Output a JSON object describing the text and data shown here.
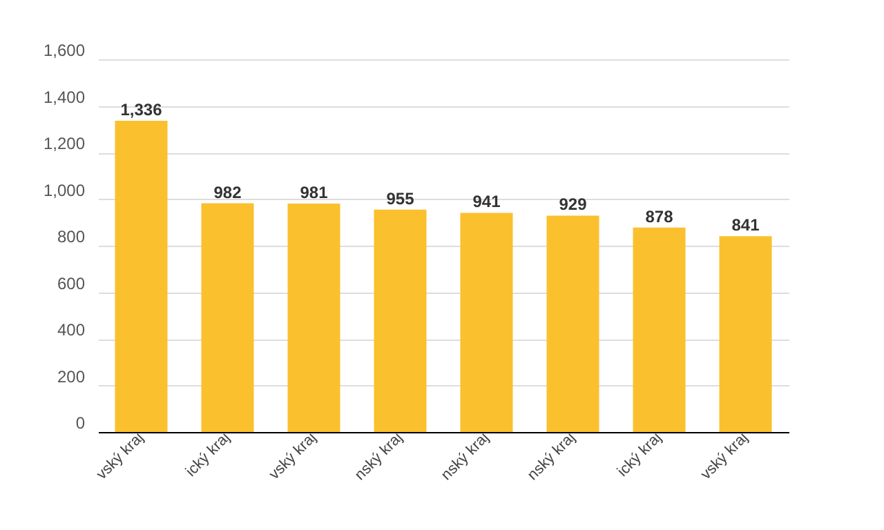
{
  "chart_data": {
    "type": "bar",
    "categories": [
      "vský kraj",
      "ický kraj",
      "vský kraj",
      "nský kraj",
      "nský kraj",
      "nský kraj",
      "ický kraj",
      "vský kraj"
    ],
    "values": [
      1336,
      982,
      981,
      955,
      941,
      929,
      878,
      841
    ],
    "value_labels": [
      "1,336",
      "982",
      "981",
      "955",
      "941",
      "929",
      "878",
      "841"
    ],
    "color": "#fbc02d",
    "ylim": [
      0,
      1600
    ],
    "yticks": [
      0,
      {
        "value": 200,
        "label": "200"
      },
      {
        "value": 400,
        "label": "400"
      },
      {
        "value": 600,
        "label": "600"
      },
      {
        "value": 800,
        "label": "800"
      },
      {
        "value": 1000,
        "label": "1,000"
      },
      {
        "value": 1200,
        "label": "1,200"
      },
      {
        "value": 1400,
        "label": "1,400"
      },
      {
        "value": 1600,
        "label": "1,600"
      }
    ],
    "grid": "y"
  }
}
